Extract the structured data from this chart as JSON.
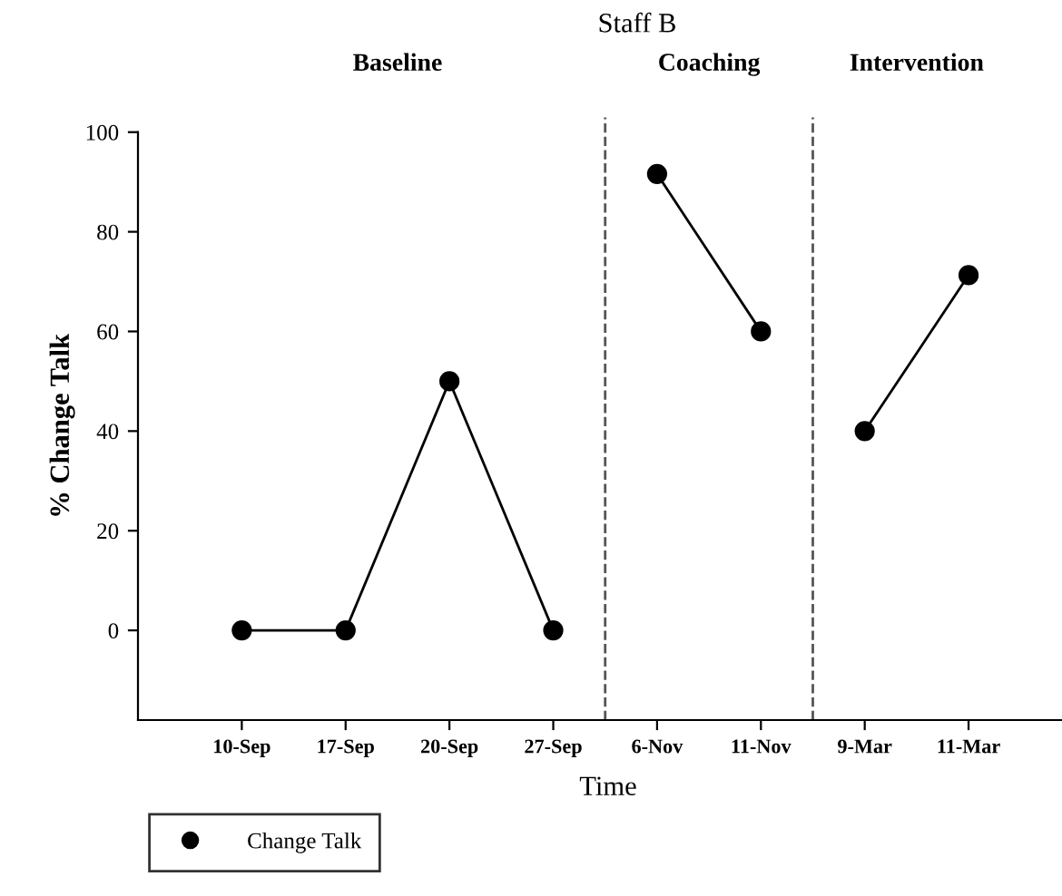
{
  "chart_data": {
    "type": "line",
    "title": "Staff B",
    "xlabel": "Time",
    "ylabel": "% Change Talk",
    "categories": [
      "10-Sep",
      "17-Sep",
      "20-Sep",
      "27-Sep",
      "6-Nov",
      "11-Nov",
      "9-Mar",
      "11-Mar"
    ],
    "series": [
      {
        "name": "Change Talk",
        "color": "#000000",
        "values": [
          0,
          0,
          50,
          0,
          null,
          null,
          null,
          null
        ]
      },
      {
        "color": "#000000",
        "values": [
          null,
          null,
          null,
          null,
          91.6,
          60,
          null,
          null
        ]
      },
      {
        "color": "#000000",
        "values": [
          null,
          null,
          null,
          null,
          null,
          null,
          40,
          71.3
        ]
      }
    ],
    "ylim": [
      -18,
      100
    ],
    "yticks": [
      0,
      20,
      40,
      60,
      80,
      100
    ],
    "annotations": [
      "Baseline",
      "Coaching",
      "Intervention"
    ],
    "grid": false,
    "legend": "bottom left",
    "marker": "circle",
    "line_style": "solid"
  }
}
